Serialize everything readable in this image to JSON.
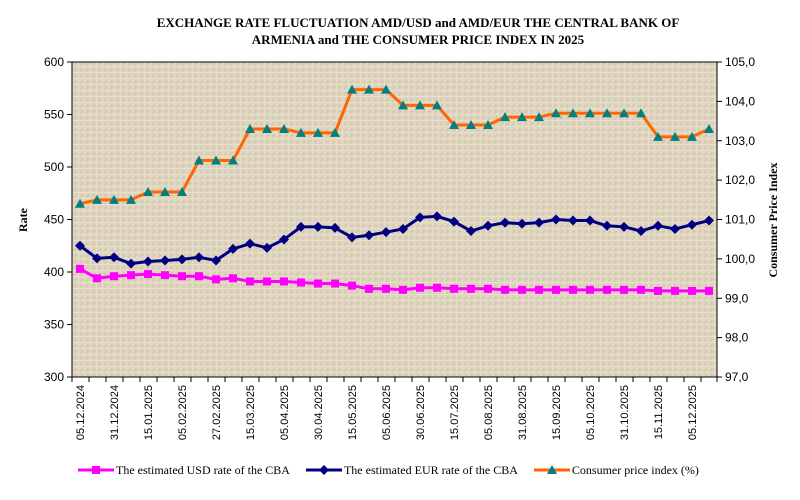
{
  "chart_data": {
    "type": "line",
    "title_lines": [
      "EXCHANGE RATE FLUCTUATION AMD/USD and AMD/EUR THE CENTRAL BANK OF",
      "ARMENIA and THE CONSUMER PRICE INDEX IN 2025"
    ],
    "ylabel": "Rate",
    "y2label": "Consumer  Price Index",
    "ylim": [
      300,
      600
    ],
    "y_ticks": [
      "300",
      "350",
      "400",
      "450",
      "500",
      "550",
      "600"
    ],
    "y2lim": [
      97.0,
      105.0
    ],
    "y2_ticks": [
      "97,0",
      "98,0",
      "99,0",
      "100,0",
      "101,0",
      "102,0",
      "103,0",
      "104,0",
      "105,0"
    ],
    "x_tick_labels": [
      "05.12.2024",
      "31.12.2024",
      "15.01.2025",
      "05.02.2025",
      "27.02.2025",
      "15.03.2025",
      "05.04.2025",
      "30.04.2025",
      "15.05.2025",
      "05.06.2025",
      "30.06.2025",
      "15.07.2025",
      "05.08.2025",
      "31.08.2025",
      "15.09.2025",
      "05.10.2025",
      "31.10.2025",
      "15.11.2025",
      "05.12.2025"
    ],
    "label_every": 2,
    "point_count": 38,
    "grid": false,
    "legend_position": "bottom",
    "series": [
      {
        "name": "The estimated USD rate of the CBA",
        "axis": "left",
        "color": "#ff00ff",
        "marker": "square",
        "values": [
          403,
          394,
          396,
          397,
          398,
          397,
          396,
          396,
          393,
          394,
          391,
          391,
          391,
          390,
          389,
          389,
          387,
          384,
          384,
          383,
          385,
          385,
          384,
          384,
          384,
          383,
          383,
          383,
          383,
          383,
          383,
          383,
          383,
          383,
          382,
          382,
          382,
          382
        ]
      },
      {
        "name": "The estimated EUR rate of the CBA",
        "axis": "left",
        "color": "#000080",
        "marker": "diamond",
        "values": [
          425,
          413,
          414,
          408,
          410,
          411,
          412,
          414,
          411,
          422,
          427,
          423,
          431,
          443,
          443,
          442,
          433,
          435,
          438,
          441,
          452,
          453,
          448,
          439,
          444,
          447,
          446,
          447,
          450,
          449,
          449,
          444,
          443,
          439,
          444,
          441,
          445,
          449
        ]
      },
      {
        "name": "Consumer price index (%)",
        "axis": "right",
        "color": "#ff6600",
        "marker_color": "#008080",
        "marker": "triangle",
        "values": [
          101.4,
          101.5,
          101.5,
          101.5,
          101.7,
          101.7,
          101.7,
          102.5,
          102.5,
          102.5,
          103.3,
          103.3,
          103.3,
          103.2,
          103.2,
          103.2,
          104.3,
          104.3,
          104.3,
          103.9,
          103.9,
          103.9,
          103.4,
          103.4,
          103.4,
          103.6,
          103.6,
          103.6,
          103.7,
          103.7,
          103.7,
          103.7,
          103.7,
          103.7,
          103.1,
          103.1,
          103.1,
          103.3
        ]
      }
    ]
  },
  "legend": {
    "usd_label": "The estimated USD rate of the CBA",
    "eur_label": "The estimated EUR rate of the CBA",
    "cpi_label": "Consumer price index (%)"
  }
}
